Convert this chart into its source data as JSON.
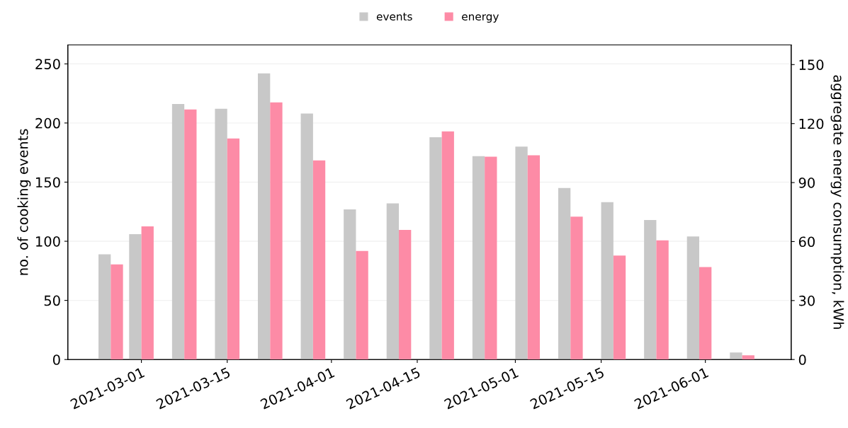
{
  "chart_data": {
    "type": "bar",
    "ylabel": "no. of cooking events",
    "y2label": "aggregate energy consumption, kWh",
    "x": [
      "2021-02-24",
      "2021-03-01",
      "2021-03-08",
      "2021-03-15",
      "2021-03-22",
      "2021-03-29",
      "2021-04-05",
      "2021-04-12",
      "2021-04-19",
      "2021-04-26",
      "2021-05-03",
      "2021-05-10",
      "2021-05-17",
      "2021-05-24",
      "2021-05-31",
      "2021-06-07"
    ],
    "series": [
      {
        "name": "events",
        "color": "#c8c8c8",
        "values": [
          89,
          106,
          216,
          212,
          242,
          208,
          127,
          132,
          188,
          172,
          180,
          145,
          133,
          118,
          104,
          6
        ]
      },
      {
        "name": "energy",
        "color": "#fd8ba6",
        "axis": "y2",
        "values": [
          48.4,
          67.7,
          127.2,
          112.4,
          130.8,
          101.3,
          55.2,
          65.9,
          116.0,
          103.2,
          103.9,
          72.7,
          52.9,
          60.6,
          47.0,
          2.1
        ]
      }
    ],
    "xlim": [
      "2021-02-17",
      "2021-06-15"
    ],
    "xticks": [
      "2021-03-01",
      "2021-03-15",
      "2021-04-01",
      "2021-04-15",
      "2021-05-01",
      "2021-05-15",
      "2021-06-01"
    ],
    "ylim": [
      0,
      266
    ],
    "yticks": [
      0,
      50,
      100,
      150,
      200,
      250
    ],
    "y2lim": [
      0,
      160
    ],
    "y2ticks": [
      0,
      30,
      60,
      90,
      120,
      150
    ],
    "grid": "y",
    "legend": "top"
  }
}
